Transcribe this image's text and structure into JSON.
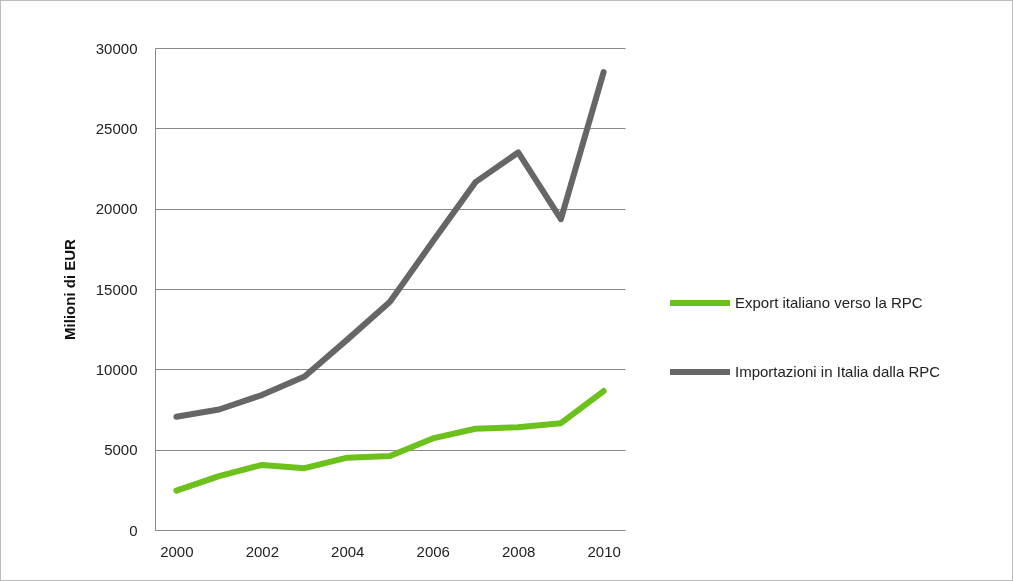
{
  "chart_data": {
    "type": "line",
    "ylabel": "Milioni di EUR",
    "x": [
      2000,
      2001,
      2002,
      2003,
      2004,
      2005,
      2006,
      2007,
      2008,
      2009,
      2010
    ],
    "series": [
      {
        "name": "Export italiano verso la RPC",
        "color": "#6cc11c",
        "values": [
          2450,
          3350,
          4050,
          3850,
          4500,
          4600,
          5700,
          6300,
          6400,
          6650,
          8650
        ]
      },
      {
        "name": "Importazioni in Italia dalla RPC",
        "color": "#666666",
        "values": [
          7050,
          7500,
          8400,
          9550,
          11850,
          14200,
          17950,
          21650,
          23500,
          19350,
          28500
        ]
      }
    ],
    "xlim": [
      1999.5,
      2010.5
    ],
    "xticks": [
      2000,
      2002,
      2004,
      2006,
      2008,
      2010
    ],
    "ylim": [
      0,
      30000
    ],
    "yticks": [
      0,
      5000,
      10000,
      15000,
      20000,
      25000,
      30000
    ],
    "grid": "y",
    "legend": "right",
    "line_style": "solid",
    "marker": "none"
  }
}
